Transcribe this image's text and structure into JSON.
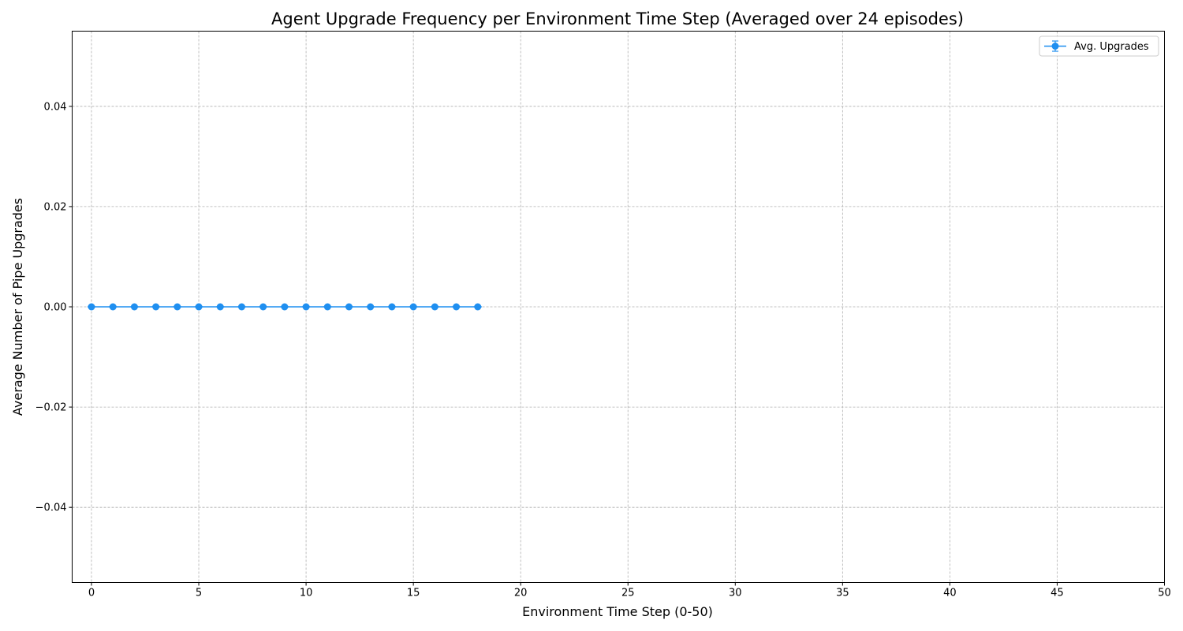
{
  "chart_data": {
    "type": "line",
    "title": "Agent Upgrade Frequency per Environment Time Step (Averaged over 24 episodes)",
    "xlabel": "Environment Time Step (0-50)",
    "ylabel": "Average Number of Pipe Upgrades",
    "xlim": [
      -0.9,
      50
    ],
    "ylim": [
      -0.055,
      0.055
    ],
    "xticks": [
      0,
      5,
      10,
      15,
      20,
      25,
      30,
      35,
      40,
      45,
      50
    ],
    "yticks": [
      -0.04,
      -0.02,
      0.0,
      0.02,
      0.04
    ],
    "ytick_labels": [
      "−0.04",
      "−0.02",
      "0.00",
      "0.02",
      "0.04"
    ],
    "grid": true,
    "legend_position": "top-right",
    "series": [
      {
        "name": "Avg. Upgrades",
        "color": "#1f8ff0",
        "marker": "circle",
        "error_bars": true,
        "x": [
          0,
          1,
          2,
          3,
          4,
          5,
          6,
          7,
          8,
          9,
          10,
          11,
          12,
          13,
          14,
          15,
          16,
          17,
          18
        ],
        "y": [
          0,
          0,
          0,
          0,
          0,
          0,
          0,
          0,
          0,
          0,
          0,
          0,
          0,
          0,
          0,
          0,
          0,
          0,
          0
        ],
        "yerr": [
          0,
          0,
          0,
          0,
          0,
          0,
          0,
          0,
          0,
          0,
          0,
          0,
          0,
          0,
          0,
          0,
          0,
          0,
          0
        ]
      }
    ]
  }
}
